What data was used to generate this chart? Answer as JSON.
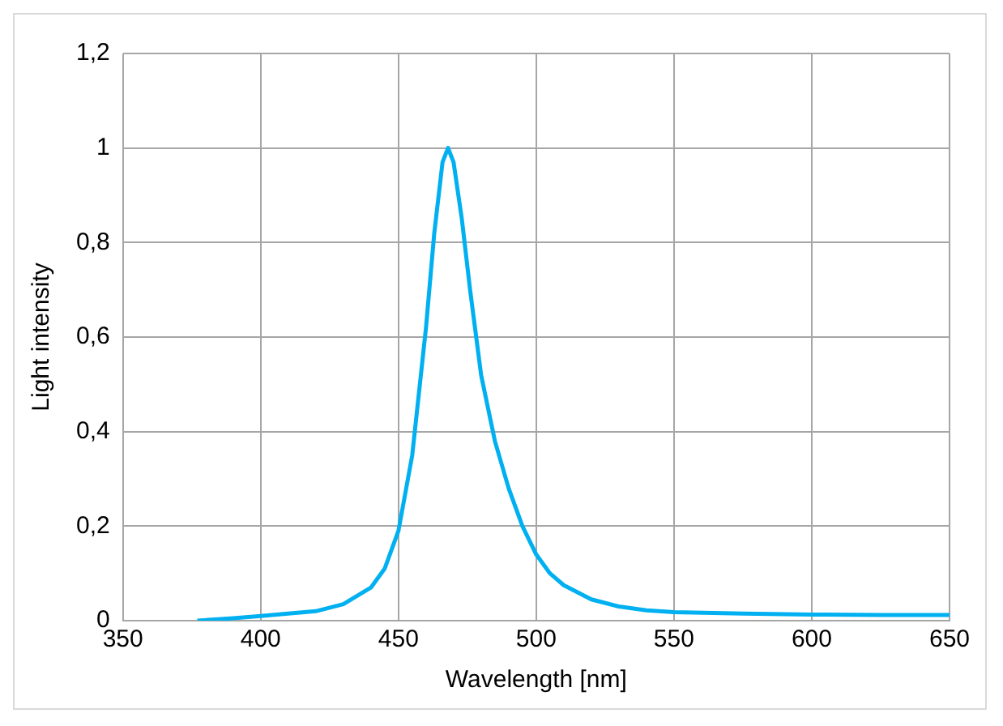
{
  "chart_data": {
    "type": "line",
    "xlabel": "Wavelength [nm]",
    "ylabel": "Light intensity",
    "xlim": [
      350,
      650
    ],
    "xticks": [
      350,
      400,
      450,
      500,
      550,
      600,
      650
    ],
    "ylim": [
      0,
      1.2
    ],
    "yticks": [
      0,
      {
        "value": 0.2,
        "label": "0,2"
      },
      {
        "value": 0.4,
        "label": "0,4"
      },
      {
        "value": 0.6,
        "label": "0,6"
      },
      {
        "value": 0.8,
        "label": "0,8"
      },
      1,
      {
        "value": 1.2,
        "label": "1,2"
      }
    ],
    "grid": true,
    "marker": "none",
    "line_style": "solid",
    "series": [
      {
        "color": "#00b0f0",
        "x": [
          377,
          390,
          400,
          410,
          420,
          430,
          440,
          445,
          450,
          455,
          460,
          463,
          466,
          468,
          470,
          473,
          476,
          480,
          485,
          490,
          495,
          500,
          505,
          510,
          520,
          530,
          540,
          550,
          575,
          600,
          625,
          650
        ],
        "values": [
          0,
          0.005,
          0.01,
          0.015,
          0.02,
          0.035,
          0.07,
          0.11,
          0.19,
          0.35,
          0.62,
          0.82,
          0.97,
          1.0,
          0.97,
          0.85,
          0.7,
          0.52,
          0.38,
          0.28,
          0.2,
          0.14,
          0.1,
          0.075,
          0.045,
          0.03,
          0.022,
          0.018,
          0.015,
          0.013,
          0.012,
          0.012
        ]
      }
    ]
  }
}
